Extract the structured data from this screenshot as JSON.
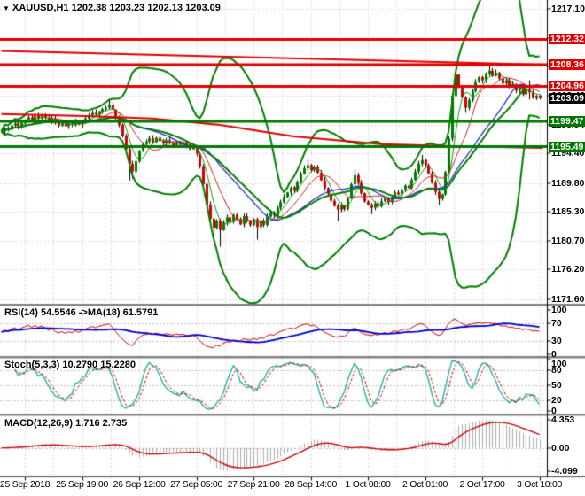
{
  "header": {
    "symbol_button": "XAUUSD,H1",
    "open": "1202.38",
    "high": "1203.23",
    "low": "1202.13",
    "close": "1203.09"
  },
  "colors": {
    "bull": "#007d00",
    "bear": "#d40000",
    "wick": "#000000",
    "band": "#007d00",
    "ma_fast": "#0f9b0f",
    "ma_mid": "#cc2222",
    "ma_slow": "#2222cc",
    "ma_long": "#e00000",
    "trend": "#e00000",
    "grid": "#c8c8c8",
    "level_red": "#e00000",
    "level_green": "#007700",
    "rsi_line": "#cc0000",
    "rsi_ma": "#0000cc",
    "stoch_k": "#20b2aa",
    "stoch_d": "#dd0000",
    "macd_hist": "#ababab",
    "macd_signal": "#cc0000",
    "box_red": "#e00000",
    "box_green": "#007700",
    "box_black": "#000000"
  },
  "chart_data": {
    "type": "candlestick",
    "title": "XAUUSD,H1",
    "x_labels": [
      "25 Sep 2018",
      "25 Sep 19:00",
      "26 Sep 12:00",
      "27 Sep 05:00",
      "27 Sep 21:00",
      "28 Sep 14:00",
      "1 Oct 08:00",
      "2 Oct 01:00",
      "2 Oct 17:00",
      "3 Oct 10:00"
    ],
    "x_label_bars": [
      7,
      24,
      41,
      58,
      75,
      92,
      109,
      126,
      143,
      160
    ],
    "ylim": [
      1171.6,
      1217.1
    ],
    "closes": [
      1197.9,
      1198.4,
      1198.2,
      1198.8,
      1199.1,
      1198.7,
      1199.2,
      1199.6,
      1200.1,
      1199.7,
      1200.3,
      1199.9,
      1200.5,
      1200.0,
      1199.5,
      1199.9,
      1199.3,
      1198.8,
      1199.2,
      1198.7,
      1199.1,
      1198.9,
      1199.4,
      1199.0,
      1199.5,
      1199.9,
      1200.4,
      1200.8,
      1200.5,
      1201.0,
      1201.4,
      1201.6,
      1202.0,
      1201.3,
      1200.2,
      1198.9,
      1197.2,
      1195.1,
      1192.8,
      1191.6,
      1193.2,
      1194.8,
      1195.9,
      1196.3,
      1196.8,
      1196.2,
      1196.9,
      1196.4,
      1196.0,
      1196.5,
      1196.1,
      1195.7,
      1196.2,
      1195.8,
      1196.0,
      1195.5,
      1195.1,
      1195.4,
      1194.4,
      1192.4,
      1189.6,
      1186.4,
      1184.2,
      1182.8,
      1183.9,
      1182.4,
      1183.6,
      1184.4,
      1183.7,
      1184.8,
      1184.1,
      1183.3,
      1184.6,
      1183.9,
      1183.2,
      1184.1,
      1182.9,
      1183.8,
      1183.2,
      1184.5,
      1185.2,
      1184.7,
      1185.9,
      1186.8,
      1187.6,
      1188.3,
      1189.1,
      1188.6,
      1189.9,
      1191.2,
      1192.1,
      1192.6,
      1191.8,
      1192.3,
      1191.4,
      1190.2,
      1189.0,
      1188.1,
      1187.0,
      1186.2,
      1185.6,
      1186.3,
      1185.7,
      1187.4,
      1189.6,
      1191.0,
      1189.8,
      1188.2,
      1186.9,
      1186.4,
      1185.9,
      1186.6,
      1186.1,
      1186.9,
      1187.4,
      1186.8,
      1187.6,
      1188.3,
      1188.0,
      1188.8,
      1189.4,
      1189.0,
      1190.3,
      1191.6,
      1192.8,
      1193.4,
      1192.6,
      1191.3,
      1189.8,
      1188.4,
      1187.3,
      1188.0,
      1191.5,
      1196.8,
      1203.5,
      1206.8,
      1204.9,
      1203.2,
      1201.6,
      1202.8,
      1204.2,
      1205.6,
      1206.4,
      1205.9,
      1206.9,
      1207.4,
      1206.6,
      1207.1,
      1206.2,
      1205.4,
      1205.9,
      1204.8,
      1205.3,
      1204.3,
      1204.8,
      1203.7,
      1204.6,
      1204.0,
      1203.1,
      1203.5,
      1203.09
    ],
    "wick_overrides": {
      "32": {
        "h": 1202.8
      },
      "38": {
        "l": 1190.2
      },
      "39": {
        "l": 1190.5
      },
      "63": {
        "l": 1180.8
      },
      "65": {
        "l": 1179.8
      },
      "76": {
        "l": 1180.9
      },
      "91": {
        "h": 1193.5
      },
      "100": {
        "l": 1183.9
      },
      "105": {
        "h": 1191.9
      },
      "110": {
        "l": 1184.9
      },
      "125": {
        "h": 1194.2
      },
      "130": {
        "l": 1186.3
      },
      "135": {
        "h": 1207.6
      },
      "138": {
        "l": 1200.8
      },
      "145": {
        "h": 1208.3
      },
      "157": {
        "h": 1205.9,
        "l": 1202.9
      },
      "158": {
        "l": 1203.0
      },
      "159": {
        "l": 1202.8
      },
      "160": {
        "l": 1202.9
      },
      "161": {
        "l": 1202.8
      }
    },
    "y_ticks": [
      {
        "label": "1217.10",
        "price": 1217.1,
        "show": true
      },
      {
        "label": "1212.56",
        "price": 1212.56,
        "show": false
      },
      {
        "label": "1208.02",
        "price": 1208.02,
        "show": false
      },
      {
        "label": "1203.48",
        "price": 1203.48,
        "show": false
      },
      {
        "label": "1198.94",
        "price": 1198.94,
        "show": false
      },
      {
        "label": "1194.40",
        "price": 1194.4,
        "show": true
      },
      {
        "label": "1189.80",
        "price": 1189.8,
        "show": true
      },
      {
        "label": "1185.30",
        "price": 1185.3,
        "show": true
      },
      {
        "label": "1180.70",
        "price": 1180.7,
        "show": true
      },
      {
        "label": "1176.20",
        "price": 1176.2,
        "show": true
      },
      {
        "label": "1171.60",
        "price": 1171.6,
        "show": true
      }
    ],
    "levels": {
      "resistance": [
        {
          "label": "1212.32",
          "price": 1212.32
        },
        {
          "label": "1208.36",
          "price": 1208.36
        },
        {
          "label": "1204.96",
          "price": 1204.96
        }
      ],
      "support": [
        {
          "label": "1199.47",
          "price": 1199.47
        },
        {
          "label": "1195.49",
          "price": 1195.49
        }
      ],
      "current": {
        "label": "1203.09",
        "price": 1203.09
      },
      "trendline": [
        [
          0,
          1210.5
        ],
        [
          161,
          1208.35
        ]
      ],
      "ma_long": [
        [
          0,
          1200.6
        ],
        [
          25,
          1200.3
        ],
        [
          45,
          1199.9
        ],
        [
          65,
          1198.9
        ],
        [
          87,
          1197.1
        ],
        [
          113,
          1195.9
        ],
        [
          132,
          1195.6
        ],
        [
          161,
          1195.3
        ]
      ]
    },
    "indicators": {
      "bollinger": {
        "period": 24,
        "deviation": 3.2
      },
      "ma_periods": {
        "fast": 5,
        "mid": 10,
        "slow": 21
      },
      "rsi": {
        "label": "RSI(14) 54.5546  ->MA(18) 61.5791",
        "period": 14,
        "ma_period": 18,
        "levels": [
          70,
          30
        ],
        "scale_labels": [
          {
            "label": "100",
            "v": 100
          },
          {
            "label": "70",
            "v": 70
          },
          {
            "label": "30",
            "v": 30
          },
          {
            "label": "0",
            "v": 0
          }
        ]
      },
      "stoch": {
        "label": "Stoch(5,3,3) 10.2790 15.2280",
        "levels": [
          80,
          50,
          20
        ],
        "scale_labels": [
          {
            "label": "100",
            "v": 100
          },
          {
            "label": "80",
            "v": 80
          },
          {
            "label": "50",
            "v": 50
          },
          {
            "label": "20",
            "v": 20
          },
          {
            "label": "0",
            "v": 0
          }
        ]
      },
      "macd": {
        "label": "MACD(12,26,9) 1.716 2.735",
        "range": [
          4.353,
          -4.099
        ],
        "scale_labels": [
          {
            "label": "4.353",
            "v": "max"
          },
          {
            "label": "0.00",
            "v": "zero"
          },
          {
            "label": "-4.099",
            "v": "min"
          }
        ]
      }
    }
  }
}
